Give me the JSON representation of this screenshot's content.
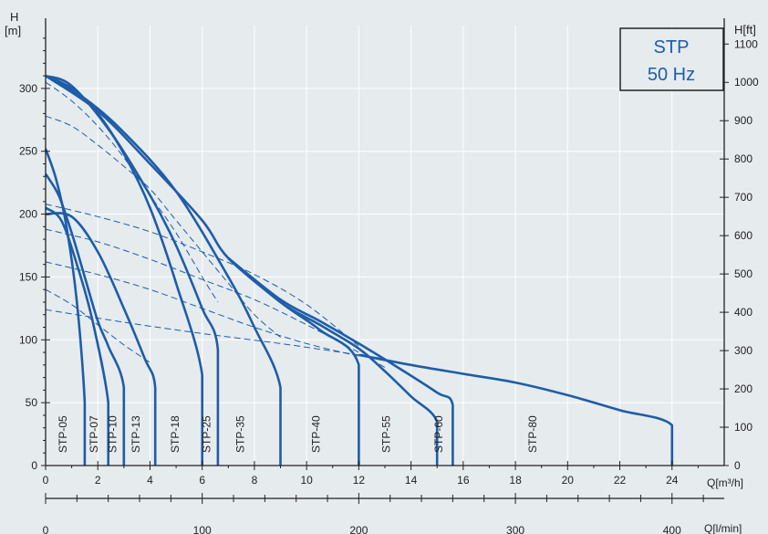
{
  "chart_data": {
    "type": "line",
    "title_box": {
      "line1": "STP",
      "line2": "50 Hz"
    },
    "y_left_label": [
      "H",
      "[m]"
    ],
    "y_right_label": "H[ft]",
    "x_label": "Q[m³/h]",
    "x2_label": "Q[l/min]",
    "xlim": [
      0,
      26
    ],
    "ylim": [
      0,
      350
    ],
    "y_ticks": [
      0,
      50,
      100,
      150,
      200,
      250,
      300
    ],
    "y_right_ticks": [
      0,
      100,
      200,
      300,
      400,
      500,
      600,
      700,
      800,
      900,
      1000,
      1100
    ],
    "x_ticks": [
      0,
      2,
      4,
      6,
      8,
      10,
      12,
      14,
      16,
      18,
      20,
      22,
      24
    ],
    "x2_ticks": [
      0,
      100,
      200,
      300,
      400
    ],
    "colors": {
      "curve": "#1e5da8",
      "axis": "#222222",
      "title": "#1e5da8",
      "background": "#e6ebee"
    },
    "series": [
      {
        "name": "STP-05",
        "label_x": 0.8,
        "points": [
          [
            0,
            252
          ],
          [
            0.4,
            228
          ],
          [
            0.8,
            190
          ],
          [
            1.2,
            130
          ],
          [
            1.5,
            50
          ],
          [
            1.5,
            0
          ]
        ]
      },
      {
        "name": "STP-07",
        "label_x": 2.0,
        "points": [
          [
            0,
            205
          ],
          [
            0.6,
            195
          ],
          [
            1.2,
            160
          ],
          [
            1.8,
            115
          ],
          [
            2.4,
            50
          ],
          [
            2.4,
            0
          ]
        ]
      },
      {
        "name": "STP-10",
        "label_x": 2.7,
        "points": [
          [
            0,
            232
          ],
          [
            0.5,
            215
          ],
          [
            1.0,
            185
          ],
          [
            1.5,
            150
          ],
          [
            2.0,
            115
          ],
          [
            2.4,
            95
          ],
          [
            3.0,
            62
          ],
          [
            3.0,
            0
          ]
        ]
      },
      {
        "name": "STP-13",
        "label_x": 3.6,
        "points": [
          [
            0,
            200
          ],
          [
            1.0,
            198
          ],
          [
            2.0,
            170
          ],
          [
            3.0,
            125
          ],
          [
            3.8,
            85
          ],
          [
            4.2,
            62
          ],
          [
            4.2,
            0
          ]
        ]
      },
      {
        "name": "STP-18",
        "label_x": 5.1,
        "points": [
          [
            0,
            310
          ],
          [
            1.0,
            300
          ],
          [
            2.0,
            280
          ],
          [
            3.0,
            248
          ],
          [
            4.0,
            205
          ],
          [
            5.0,
            145
          ],
          [
            6.0,
            72
          ],
          [
            6.0,
            0
          ]
        ]
      },
      {
        "name": "STP-25",
        "label_x": 6.3,
        "points": [
          [
            0,
            310
          ],
          [
            1.0,
            302
          ],
          [
            2.5,
            265
          ],
          [
            4.0,
            215
          ],
          [
            5.0,
            175
          ],
          [
            6.0,
            125
          ],
          [
            6.6,
            92
          ],
          [
            6.6,
            0
          ]
        ]
      },
      {
        "name": "STP-35",
        "label_x": 7.6,
        "points": [
          [
            0,
            310
          ],
          [
            1.5,
            292
          ],
          [
            3.0,
            265
          ],
          [
            5.0,
            218
          ],
          [
            7.0,
            150
          ],
          [
            8.0,
            110
          ],
          [
            9.0,
            62
          ],
          [
            9.0,
            0
          ]
        ]
      },
      {
        "name": "STP-40",
        "label_x": 10.5,
        "points": [
          [
            0,
            310
          ],
          [
            2.0,
            282
          ],
          [
            4.0,
            240
          ],
          [
            6.0,
            195
          ],
          [
            7.0,
            165
          ],
          [
            9.0,
            130
          ],
          [
            10.5,
            108
          ],
          [
            12.0,
            80
          ],
          [
            12.0,
            0
          ]
        ]
      },
      {
        "name": "STP-55",
        "label_x": 13.2,
        "points": [
          [
            7.0,
            165
          ],
          [
            9.0,
            130
          ],
          [
            10.5,
            112
          ],
          [
            12.0,
            93
          ],
          [
            13.0,
            75
          ],
          [
            14.0,
            55
          ],
          [
            15.0,
            35
          ],
          [
            15.0,
            0
          ]
        ]
      },
      {
        "name": "STP-60",
        "label_x": 15.2,
        "points": [
          [
            7.0,
            165
          ],
          [
            9.0,
            132
          ],
          [
            10.5,
            115
          ],
          [
            12.0,
            97
          ],
          [
            13.5,
            78
          ],
          [
            15.0,
            58
          ],
          [
            15.6,
            48
          ],
          [
            15.6,
            0
          ]
        ]
      },
      {
        "name": "STP-80",
        "label_x": 18.8,
        "points": [
          [
            12.0,
            88
          ],
          [
            14.0,
            80
          ],
          [
            16.0,
            73
          ],
          [
            18.0,
            66
          ],
          [
            20.0,
            56
          ],
          [
            22.0,
            44
          ],
          [
            24.0,
            32
          ],
          [
            24.0,
            0
          ]
        ]
      }
    ],
    "efficiency_curves": [
      [
        [
          0,
          305
        ],
        [
          1,
          290
        ],
        [
          2,
          270
        ],
        [
          3,
          245
        ],
        [
          4,
          215
        ],
        [
          5,
          185
        ],
        [
          6,
          150
        ],
        [
          6.6,
          130
        ]
      ],
      [
        [
          0,
          278
        ],
        [
          1,
          270
        ],
        [
          2,
          255
        ],
        [
          3,
          238
        ],
        [
          4,
          220
        ],
        [
          5,
          195
        ],
        [
          6,
          170
        ],
        [
          7,
          145
        ],
        [
          8,
          120
        ],
        [
          9,
          102
        ]
      ],
      [
        [
          0,
          208
        ],
        [
          2,
          198
        ],
        [
          4,
          186
        ],
        [
          6,
          170
        ],
        [
          8,
          152
        ],
        [
          10,
          128
        ],
        [
          12,
          95
        ]
      ],
      [
        [
          0,
          188
        ],
        [
          2,
          178
        ],
        [
          4,
          164
        ],
        [
          6,
          148
        ],
        [
          8,
          132
        ],
        [
          10,
          112
        ],
        [
          12,
          90
        ],
        [
          13,
          78
        ]
      ],
      [
        [
          0,
          162
        ],
        [
          2,
          152
        ],
        [
          4,
          140
        ],
        [
          6,
          125
        ],
        [
          8,
          110
        ],
        [
          10,
          97
        ],
        [
          12,
          87
        ]
      ],
      [
        [
          0,
          140
        ],
        [
          1,
          128
        ],
        [
          2,
          112
        ],
        [
          3,
          96
        ],
        [
          4,
          82
        ]
      ],
      [
        [
          0,
          124
        ],
        [
          3,
          114
        ],
        [
          6,
          105
        ],
        [
          9,
          97
        ],
        [
          12,
          88
        ],
        [
          13,
          85
        ]
      ]
    ]
  }
}
